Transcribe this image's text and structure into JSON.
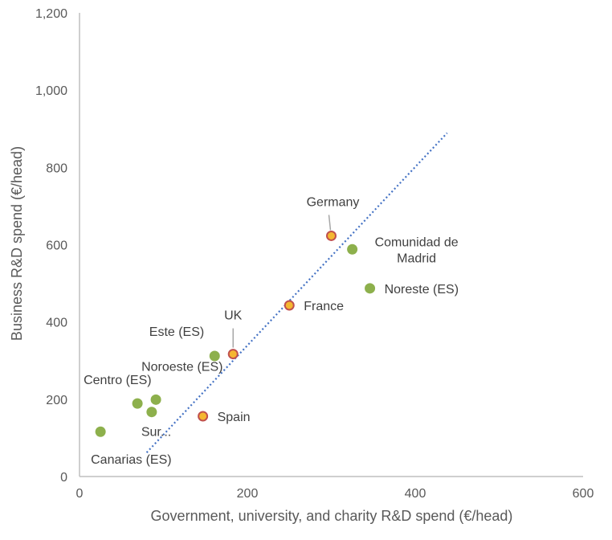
{
  "chart_data": {
    "type": "scatter",
    "xlabel": "Government, university, and charity R&D spend (€/head)",
    "ylabel": "Business R&D spend (€/head)",
    "xlim": [
      0,
      600
    ],
    "ylim": [
      0,
      1200
    ],
    "x_ticks": [
      "0",
      "200",
      "400",
      "600"
    ],
    "y_ticks": [
      "0",
      "200",
      "400",
      "600",
      "800",
      "1,000",
      "1,200"
    ],
    "x_tick_values": [
      0,
      200,
      400,
      600
    ],
    "y_tick_values": [
      0,
      200,
      400,
      600,
      800,
      1000,
      1200
    ],
    "grid": false,
    "colors": {
      "region": "#8db04c",
      "country_fill": "#f5b731",
      "country_edge": "#c0504d",
      "trendline": "#4472c4",
      "axis": "#bfbfbf",
      "leader": "#a6a6a6"
    },
    "series": [
      {
        "points": [
          {
            "label": "Comunidad de Madrid",
            "label_lines": [
              "Comunidad de",
              "Madrid"
            ],
            "x": 325,
            "y": 588
          },
          {
            "label": "Noreste (ES)",
            "label_lines": [
              "Noreste (ES)"
            ],
            "x": 346,
            "y": 487
          },
          {
            "label": "Este (ES)",
            "label_lines": [
              "Este (ES)"
            ],
            "x": 161,
            "y": 312
          },
          {
            "label": "Noroeste (ES)",
            "label_lines": [
              "Noroeste (ES)"
            ],
            "x": 91,
            "y": 199
          },
          {
            "label": "Centro (ES)",
            "label_lines": [
              "Centro (ES)"
            ],
            "x": 69,
            "y": 189
          },
          {
            "label": "Sur...",
            "label_lines": [
              "Sur..."
            ],
            "x": 86,
            "y": 167
          },
          {
            "label": "Canarias (ES)",
            "label_lines": [
              "Canarias (ES)"
            ],
            "x": 25,
            "y": 116
          }
        ]
      },
      {
        "points": [
          {
            "label": "Germany",
            "label_lines": [
              "Germany"
            ],
            "x": 300,
            "y": 623
          },
          {
            "label": "France",
            "label_lines": [
              "France"
            ],
            "x": 250,
            "y": 443
          },
          {
            "label": "UK",
            "label_lines": [
              "UK"
            ],
            "x": 183,
            "y": 317
          },
          {
            "label": "Spain",
            "label_lines": [
              "Spain"
            ],
            "x": 147,
            "y": 156
          }
        ]
      }
    ],
    "trendline": {
      "style": "dotted",
      "x": [
        80,
        438
      ],
      "y": [
        62,
        889
      ]
    }
  }
}
